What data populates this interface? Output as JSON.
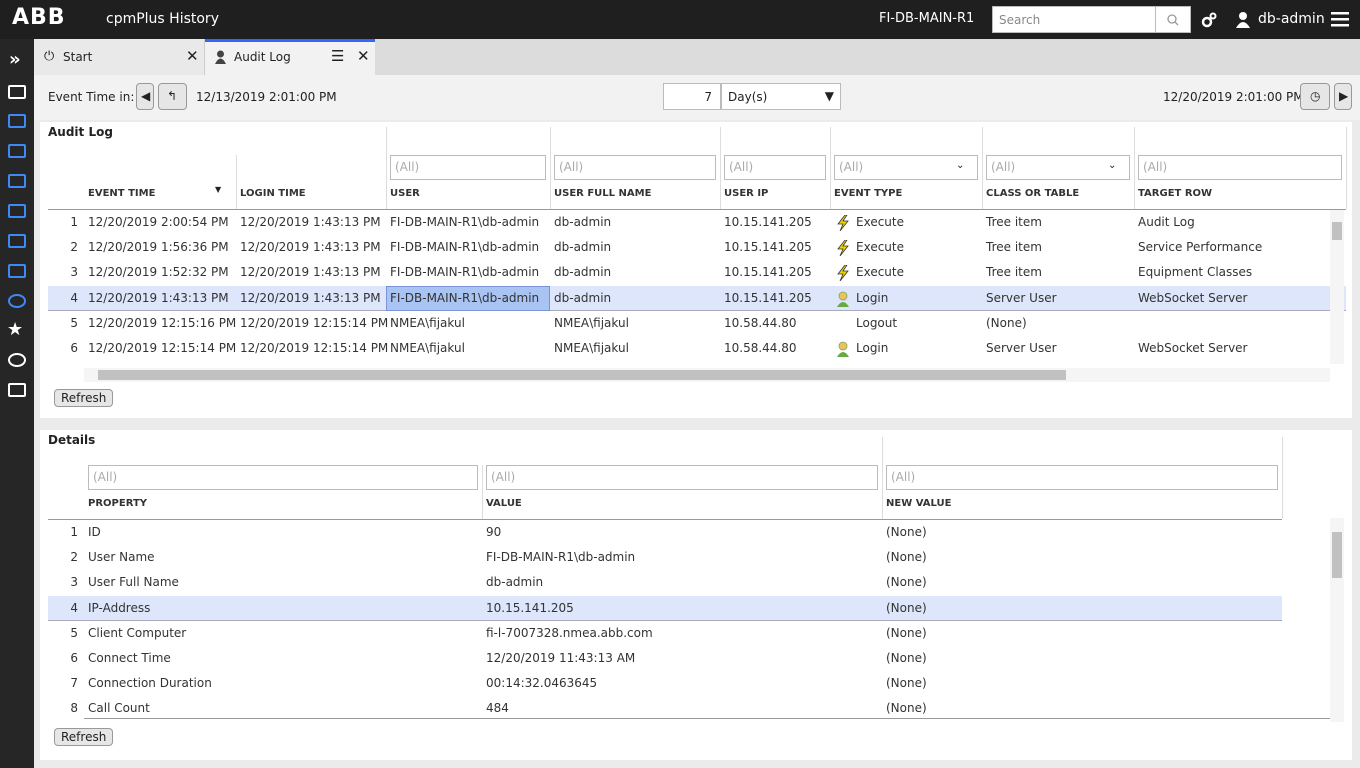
{
  "header": {
    "logo": "ABB",
    "app": "cpmPlus History",
    "server": "FI-DB-MAIN-R1",
    "search": "Search",
    "user": "db-admin"
  },
  "tabs": [
    "Start",
    "Audit Log"
  ],
  "toolbar": {
    "label": "Event Time in:",
    "start": "12/13/2019 2:01:00 PM",
    "count": "7",
    "unit": "Day(s)",
    "end": "12/20/2019 2:01:00 PM"
  },
  "audit": {
    "title": "Audit Log",
    "filter": "(All)",
    "refresh": "Refresh",
    "columns": [
      "EVENT TIME",
      "LOGIN TIME",
      "USER",
      "USER FULL NAME",
      "USER IP",
      "EVENT TYPE",
      "CLASS OR TABLE",
      "TARGET ROW"
    ],
    "rows": [
      [
        "1",
        "12/20/2019 2:00:54 PM",
        "12/20/2019 1:43:13 PM",
        "FI-DB-MAIN-R1\\db-admin",
        "db-admin",
        "10.15.141.205",
        "Execute",
        "Tree item",
        "Audit Log"
      ],
      [
        "2",
        "12/20/2019 1:56:36 PM",
        "12/20/2019 1:43:13 PM",
        "FI-DB-MAIN-R1\\db-admin",
        "db-admin",
        "10.15.141.205",
        "Execute",
        "Tree item",
        "Service Performance"
      ],
      [
        "3",
        "12/20/2019 1:52:32 PM",
        "12/20/2019 1:43:13 PM",
        "FI-DB-MAIN-R1\\db-admin",
        "db-admin",
        "10.15.141.205",
        "Execute",
        "Tree item",
        "Equipment Classes"
      ],
      [
        "4",
        "12/20/2019 1:43:13 PM",
        "12/20/2019 1:43:13 PM",
        "FI-DB-MAIN-R1\\db-admin",
        "db-admin",
        "10.15.141.205",
        "Login",
        "Server User",
        "WebSocket Server"
      ],
      [
        "5",
        "12/20/2019 12:15:16 PM",
        "12/20/2019 12:15:14 PM",
        "NMEA\\fijakul",
        "NMEA\\fijakul",
        "10.58.44.80",
        "Logout",
        "(None)",
        null
      ],
      [
        "6",
        "12/20/2019 12:15:14 PM",
        "12/20/2019 12:15:14 PM",
        "NMEA\\fijakul",
        "NMEA\\fijakul",
        "10.58.44.80",
        "Login",
        "Server User",
        "WebSocket Server"
      ]
    ]
  },
  "details": {
    "title": "Details",
    "filter": "(All)",
    "refresh": "Refresh",
    "columns": [
      "PROPERTY",
      "VALUE",
      "NEW VALUE"
    ],
    "rows": [
      [
        "1",
        "ID",
        "90",
        "(None)"
      ],
      [
        "2",
        "User Name",
        "FI-DB-MAIN-R1\\db-admin",
        "(None)"
      ],
      [
        "3",
        "User Full Name",
        "db-admin",
        "(None)"
      ],
      [
        "4",
        "IP-Address",
        "10.15.141.205",
        "(None)"
      ],
      [
        "5",
        "Client Computer",
        "fi-l-7007328.nmea.abb.com",
        "(None)"
      ],
      [
        "6",
        "Connect Time",
        "12/20/2019 11:43:13 AM",
        "(None)"
      ],
      [
        "7",
        "Connection Duration",
        "00:14:32.0463645",
        "(None)"
      ],
      [
        "8",
        "Call Count",
        "484",
        "(None)"
      ]
    ]
  }
}
